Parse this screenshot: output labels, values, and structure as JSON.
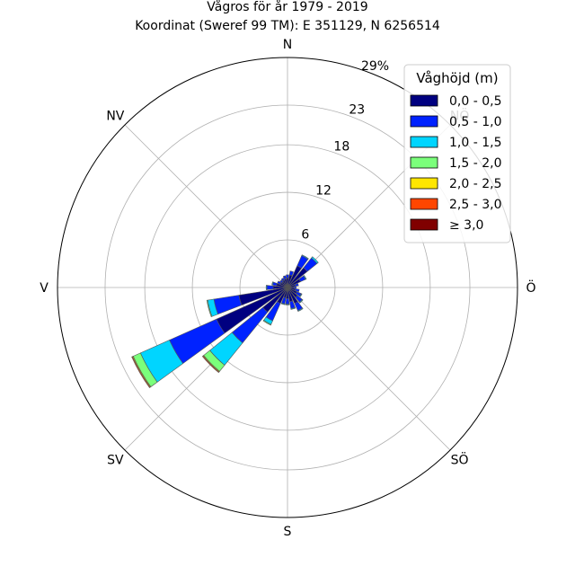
{
  "chart_data": {
    "type": "wind-rose",
    "title": "Vågros för år 1979 - 2019",
    "subtitle": "Koordinat (Sweref 99 TM): E 351129, N 6256514",
    "directions": [
      {
        "label": "N",
        "angle": 0
      },
      {
        "label": "NV",
        "angle": 315
      },
      {
        "label": "V",
        "angle": 270
      },
      {
        "label": "SV",
        "angle": 225
      },
      {
        "label": "S",
        "angle": 180
      },
      {
        "label": "SÖ",
        "angle": 135
      },
      {
        "label": "Ö",
        "angle": 90
      },
      {
        "label": "NÖ",
        "angle": 45
      }
    ],
    "radial_ticks": [
      "6",
      "12",
      "18",
      "23",
      "29%"
    ],
    "radial_max": 29,
    "legend_title": "Våghöjd (m)",
    "legend_placement": "top-right",
    "bins": [
      {
        "label": "0,0 - 0,5",
        "color": "#000080"
      },
      {
        "label": "0,5 - 1,0",
        "color": "#0022ff"
      },
      {
        "label": "1,0 - 1,5",
        "color": "#00d5ff"
      },
      {
        "label": "1,5 - 2,0",
        "color": "#7bff7b"
      },
      {
        "label": "2,0 - 2,5",
        "color": "#ffe600"
      },
      {
        "label": "2,5 - 3,0",
        "color": "#ff4600"
      },
      {
        "label": "≥ 3,0",
        "color": "#800000"
      }
    ],
    "sector_width_deg": 12,
    "sectors": [
      {
        "dir": 0,
        "values": [
          1.2,
          0.4,
          0,
          0,
          0,
          0,
          0
        ]
      },
      {
        "dir": 15,
        "values": [
          1.6,
          0.5,
          0,
          0,
          0,
          0,
          0
        ]
      },
      {
        "dir": 30,
        "values": [
          3.0,
          1.4,
          0.1,
          0,
          0,
          0,
          0
        ]
      },
      {
        "dir": 45,
        "values": [
          3.2,
          1.6,
          0.2,
          0,
          0,
          0,
          0
        ]
      },
      {
        "dir": 60,
        "values": [
          1.8,
          0.7,
          0.1,
          0,
          0,
          0,
          0
        ]
      },
      {
        "dir": 75,
        "values": [
          1.0,
          0.4,
          0,
          0,
          0,
          0,
          0
        ]
      },
      {
        "dir": 90,
        "values": [
          0.8,
          0.3,
          0,
          0,
          0,
          0,
          0
        ]
      },
      {
        "dir": 105,
        "values": [
          1.0,
          0.5,
          0,
          0,
          0,
          0,
          0
        ]
      },
      {
        "dir": 120,
        "values": [
          1.3,
          0.6,
          0.1,
          0,
          0,
          0,
          0
        ]
      },
      {
        "dir": 135,
        "values": [
          1.6,
          0.8,
          0.1,
          0,
          0,
          0,
          0
        ]
      },
      {
        "dir": 150,
        "values": [
          2.2,
          1.0,
          0.1,
          0,
          0,
          0,
          0
        ]
      },
      {
        "dir": 165,
        "values": [
          1.8,
          0.9,
          0.1,
          0,
          0,
          0,
          0
        ]
      },
      {
        "dir": 180,
        "values": [
          1.4,
          0.7,
          0.1,
          0,
          0,
          0,
          0
        ]
      },
      {
        "dir": 195,
        "values": [
          1.3,
          0.8,
          0.1,
          0,
          0,
          0,
          0
        ]
      },
      {
        "dir": 210,
        "values": [
          2.2,
          2.4,
          0.5,
          0.1,
          0,
          0,
          0
        ]
      },
      {
        "dir": 225,
        "values": [
          4.0,
          5.0,
          3.6,
          1.0,
          0.1,
          0.1,
          0
        ]
      },
      {
        "dir": 240,
        "values": [
          9.8,
          6.5,
          4.0,
          1.0,
          0.1,
          0.1,
          0
        ]
      },
      {
        "dir": 255,
        "values": [
          6.2,
          3.2,
          0.8,
          0.1,
          0,
          0,
          0
        ]
      },
      {
        "dir": 270,
        "values": [
          1.8,
          0.8,
          0.1,
          0,
          0,
          0,
          0
        ]
      },
      {
        "dir": 285,
        "values": [
          1.4,
          0.5,
          0.1,
          0,
          0,
          0,
          0
        ]
      },
      {
        "dir": 300,
        "values": [
          1.0,
          0.4,
          0,
          0,
          0,
          0,
          0
        ]
      },
      {
        "dir": 315,
        "values": [
          0.9,
          0.3,
          0,
          0,
          0,
          0,
          0
        ]
      },
      {
        "dir": 330,
        "values": [
          1.0,
          0.3,
          0,
          0,
          0,
          0,
          0
        ]
      },
      {
        "dir": 345,
        "values": [
          1.1,
          0.4,
          0,
          0,
          0,
          0,
          0
        ]
      }
    ]
  }
}
